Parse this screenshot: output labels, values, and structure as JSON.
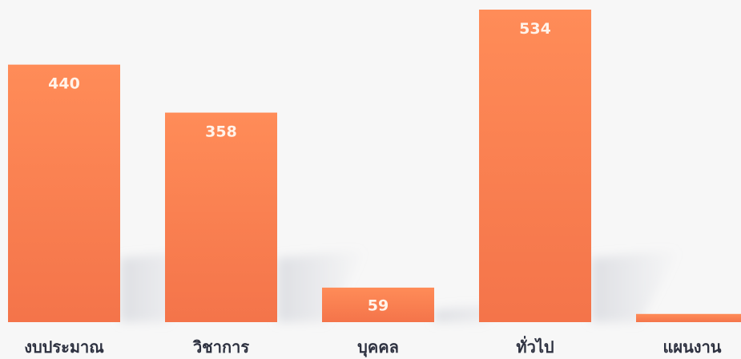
{
  "chart_data": {
    "type": "bar",
    "title": "",
    "xlabel": "",
    "ylabel": "",
    "categories": [
      "งบประมาณ",
      "วิชาการ",
      "บุคคล",
      "ทั่วไป",
      "แผนงาน"
    ],
    "values": [
      440,
      358,
      59,
      534,
      14
    ],
    "data_labels": [
      "440",
      "358",
      "59",
      "534",
      ""
    ],
    "ylim": [
      0,
      534
    ],
    "grid": false,
    "legend": "none",
    "colors": {
      "bar_top": "#ff8c58",
      "bar_bottom": "#f4744a",
      "data_label": "#fff3ea",
      "category_label": "#2d3140",
      "background": "#f7f7f7",
      "shadow": "#c9ccd4"
    }
  }
}
